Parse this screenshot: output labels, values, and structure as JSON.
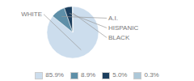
{
  "chart_data": {
    "type": "pie",
    "categories": [
      "WHITE",
      "A.I.",
      "HISPANIC",
      "BLACK"
    ],
    "values": [
      85.9,
      8.9,
      5.0,
      0.3
    ],
    "value_labels": [
      "85.9%",
      "8.9%",
      "5.0%",
      "0.3%"
    ],
    "colors": [
      "#ccdded",
      "#5e8fa8",
      "#1c3f5e",
      "#adc8d8"
    ],
    "legend": "bottom"
  }
}
